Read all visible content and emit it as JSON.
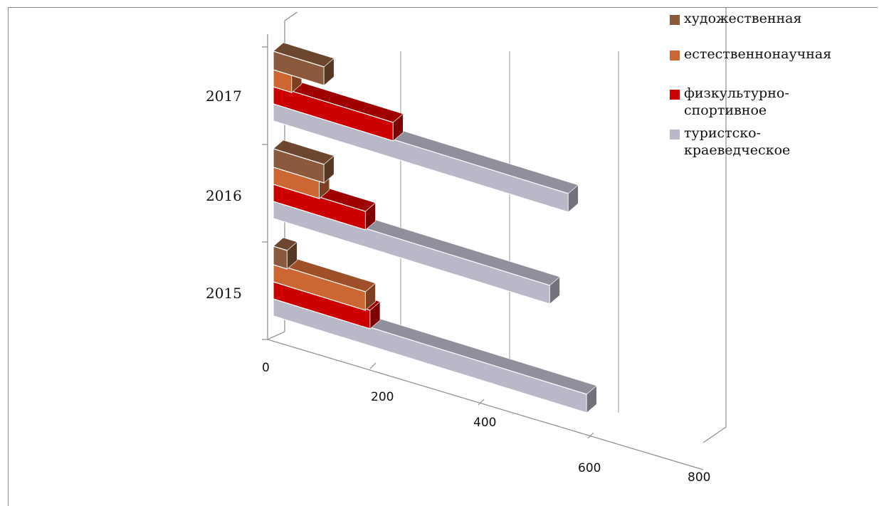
{
  "chart_data": {
    "type": "bar",
    "orientation": "horizontal",
    "style": "3d",
    "categories": [
      "2015",
      "2016",
      "2017"
    ],
    "series": [
      {
        "name": "туристско-краеведческое",
        "values": [
          680,
          600,
          640
        ],
        "color": "#b8b8c8"
      },
      {
        "name": "физкультурно-спортивное",
        "values": [
          210,
          200,
          260
        ],
        "color": "#cc0000"
      },
      {
        "name": "естественнонаучная",
        "values": [
          200,
          100,
          40
        ],
        "color": "#cc6633"
      },
      {
        "name": "художественная",
        "values": [
          30,
          110,
          110
        ],
        "color": "#8b5a3c"
      }
    ],
    "xticks": [
      "0",
      "200",
      "400",
      "600",
      "800"
    ],
    "xlim": [
      0,
      800
    ],
    "grid": true,
    "legend_position": "top-right",
    "title": "",
    "xlabel": "",
    "ylabel": ""
  },
  "legend": {
    "items": [
      {
        "label": "художественная",
        "color": "#8b5a3c"
      },
      {
        "label": "естественнонаучная",
        "color": "#cc6633"
      },
      {
        "label": "физкультурно-",
        "label_cont": "спортивное",
        "color": "#cc0000"
      },
      {
        "label": "туристско-",
        "label_cont": "краеведческое",
        "color": "#b8b8c8"
      }
    ]
  }
}
